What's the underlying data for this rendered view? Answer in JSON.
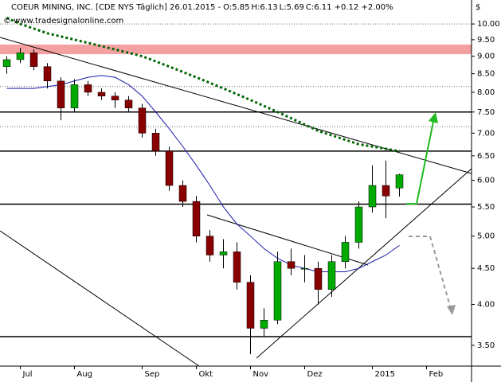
{
  "chart_data": {
    "type": "candlestick",
    "title": "COEUR MINING, INC. [CDE NYS Täglich] 26.01.2015 -",
    "quote_parts": [
      {
        "text": "O:5.85",
        "color": "#cc0000"
      },
      {
        "text": "H:6.13",
        "color": "#000000"
      },
      {
        "text": "L:5.69",
        "color": "#000000"
      },
      {
        "text": "C:6.11 +0.12 +2.00%",
        "color": "#008800"
      }
    ],
    "watermark": "© www.tradesignalonline.com",
    "currency": "$",
    "log_scale": true,
    "ylim": [
      3.27,
      10.32
    ],
    "yticks": [
      {
        "value": 10,
        "label": "10.00"
      },
      {
        "value": 9.5,
        "label": "9.50"
      },
      {
        "value": 9,
        "label": "9.00"
      },
      {
        "value": 8.5,
        "label": "8.50"
      },
      {
        "value": 8,
        "label": "8.00"
      },
      {
        "value": 7.5,
        "label": "7.50"
      },
      {
        "value": 7,
        "label": "7.00"
      },
      {
        "value": 6.5,
        "label": "6.50"
      },
      {
        "value": 6,
        "label": "6.00"
      },
      {
        "value": 5.5,
        "label": "5.50"
      },
      {
        "value": 5,
        "label": "5.00"
      },
      {
        "value": 4.5,
        "label": "4.50"
      },
      {
        "value": 4,
        "label": "4.00"
      },
      {
        "value": 3.5,
        "label": "3.50"
      }
    ],
    "categories": [
      null,
      "Jul",
      null,
      null,
      null,
      "Aug",
      null,
      null,
      null,
      null,
      "Sep",
      null,
      null,
      null,
      "Okt",
      null,
      null,
      null,
      "Nov",
      null,
      null,
      null,
      "Dez",
      null,
      null,
      null,
      null,
      "2015",
      null,
      null,
      null,
      "Feb",
      null,
      null,
      null
    ],
    "open": [
      8.7,
      8.9,
      9.1,
      8.7,
      8.3,
      7.6,
      8.2,
      8.0,
      7.9,
      7.8,
      7.6,
      7.0,
      6.6,
      5.9,
      5.6,
      5.0,
      4.7,
      4.75,
      4.3,
      3.7,
      3.8,
      4.6,
      4.5,
      4.5,
      4.2,
      4.6,
      4.9,
      5.5,
      5.9,
      5.85,
      null,
      null,
      null,
      null,
      null
    ],
    "high": [
      9.0,
      9.25,
      9.2,
      8.8,
      8.4,
      8.35,
      8.3,
      8.1,
      8.0,
      7.9,
      7.7,
      7.1,
      6.7,
      6.0,
      5.7,
      5.1,
      4.95,
      4.9,
      4.4,
      3.95,
      4.75,
      4.8,
      4.7,
      4.6,
      4.7,
      5.0,
      5.6,
      6.3,
      6.4,
      6.13,
      null,
      null,
      null,
      null,
      null
    ],
    "low": [
      8.5,
      8.8,
      8.6,
      8.1,
      7.3,
      7.5,
      7.9,
      7.8,
      7.6,
      7.5,
      6.9,
      6.5,
      5.8,
      5.5,
      4.9,
      4.6,
      4.5,
      4.2,
      3.4,
      3.6,
      3.75,
      4.4,
      4.3,
      4.0,
      4.1,
      4.5,
      4.8,
      5.4,
      5.3,
      5.69,
      null,
      null,
      null,
      null,
      null
    ],
    "close": [
      8.9,
      9.1,
      8.7,
      8.3,
      7.6,
      8.2,
      8.0,
      7.9,
      7.8,
      7.6,
      7.0,
      6.6,
      5.9,
      5.6,
      5.0,
      4.7,
      4.75,
      4.3,
      3.7,
      3.8,
      4.6,
      4.5,
      4.5,
      4.2,
      4.6,
      4.9,
      5.5,
      5.9,
      5.7,
      6.11,
      null,
      null,
      null,
      null,
      null
    ],
    "up_color": "#00aa00",
    "down_color": "#880000",
    "series": [
      {
        "color": "#006600",
        "style": "dotted",
        "values": [
          10.2,
          10.0,
          9.85,
          9.7,
          9.6,
          9.5,
          9.4,
          9.3,
          9.2,
          9.1,
          9.0,
          8.85,
          8.7,
          8.55,
          8.4,
          8.25,
          8.1,
          7.95,
          7.8,
          7.65,
          7.5,
          7.35,
          7.2,
          7.05,
          6.95,
          6.85,
          6.75,
          6.7,
          6.65,
          6.6,
          null,
          null,
          null,
          null,
          null
        ]
      },
      {
        "color": "#1a1aaa",
        "style": "solid",
        "values": [
          8.1,
          8.1,
          8.1,
          8.15,
          8.2,
          8.3,
          8.4,
          8.45,
          8.4,
          8.2,
          7.9,
          7.5,
          7.1,
          6.7,
          6.3,
          5.9,
          5.5,
          5.2,
          5.0,
          4.8,
          4.65,
          4.55,
          4.5,
          4.45,
          4.45,
          4.45,
          4.5,
          4.6,
          4.7,
          4.85,
          null,
          null,
          null,
          null,
          null
        ]
      }
    ],
    "levels": [
      7.5,
      6.6,
      5.55,
      3.6
    ],
    "dotted_levels": [
      10.0,
      8.15,
      7.15
    ],
    "band": [
      9.06,
      9.35
    ],
    "band_color": "#f4a0a0"
  }
}
